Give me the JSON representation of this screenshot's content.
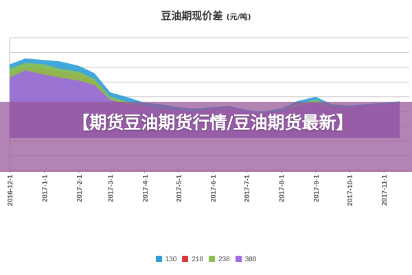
{
  "chart_data": {
    "type": "area",
    "title": "豆油期现价差",
    "unit": "(元/吨)",
    "x_ticks": [
      "2016-12-1",
      "2017-1-1",
      "2017-2-1",
      "2017-3-1",
      "2017-4-1",
      "2017-5-1",
      "2017-6-1",
      "2017-7-1",
      "2017-8-1",
      "2017-9-1",
      "2017-10-1",
      "2017-11-1"
    ],
    "x": [
      "2016-12-01",
      "2016-12-15",
      "2017-01-01",
      "2017-01-15",
      "2017-02-01",
      "2017-02-15",
      "2017-03-01",
      "2017-03-15",
      "2017-04-01",
      "2017-04-15",
      "2017-05-01",
      "2017-05-15",
      "2017-06-01",
      "2017-06-15",
      "2017-07-01",
      "2017-07-15",
      "2017-08-01",
      "2017-08-15",
      "2017-09-01",
      "2017-09-15",
      "2017-10-01",
      "2017-10-15",
      "2017-11-01",
      "2017-11-15"
    ],
    "ylim": [
      0,
      9
    ],
    "grid": true,
    "legend_position": "bottom",
    "series": [
      {
        "name": "130",
        "color": "#2e9fd8",
        "values": [
          7.2,
          7.6,
          7.5,
          7.4,
          7.1,
          6.6,
          5.3,
          5.0,
          4.6,
          4.5,
          4.3,
          4.2,
          4.3,
          4.4,
          4.1,
          4.0,
          4.2,
          4.7,
          5.0,
          4.5,
          4.4,
          4.5,
          4.6,
          4.7
        ]
      },
      {
        "name": "218",
        "color": "#d63b3b",
        "values": [
          6.6,
          7.0,
          6.9,
          6.7,
          6.6,
          6.1,
          4.9,
          4.6,
          4.2,
          3.8,
          3.6,
          3.7,
          3.9,
          4.0,
          3.8,
          3.7,
          3.6,
          4.1,
          4.4,
          4.1,
          4.1,
          4.2,
          4.3,
          4.4
        ]
      },
      {
        "name": "238",
        "color": "#8cc152",
        "values": [
          6.9,
          7.3,
          7.2,
          6.9,
          6.7,
          6.2,
          5.0,
          4.7,
          4.3,
          4.1,
          4.0,
          4.0,
          4.1,
          4.2,
          3.9,
          3.9,
          4.0,
          4.5,
          4.8,
          4.3,
          4.2,
          4.3,
          4.5,
          4.6
        ]
      },
      {
        "name": "388",
        "color": "#9c6ce0",
        "values": [
          6.3,
          6.8,
          6.5,
          6.3,
          6.1,
          5.8,
          4.8,
          4.5,
          4.4,
          4.2,
          4.1,
          4.0,
          4.2,
          4.3,
          4.0,
          3.9,
          4.0,
          4.4,
          4.6,
          4.3,
          4.3,
          4.4,
          4.5,
          4.6
        ]
      }
    ]
  },
  "banner": {
    "text": "【期货豆油期货行情/豆油期货最新】"
  }
}
